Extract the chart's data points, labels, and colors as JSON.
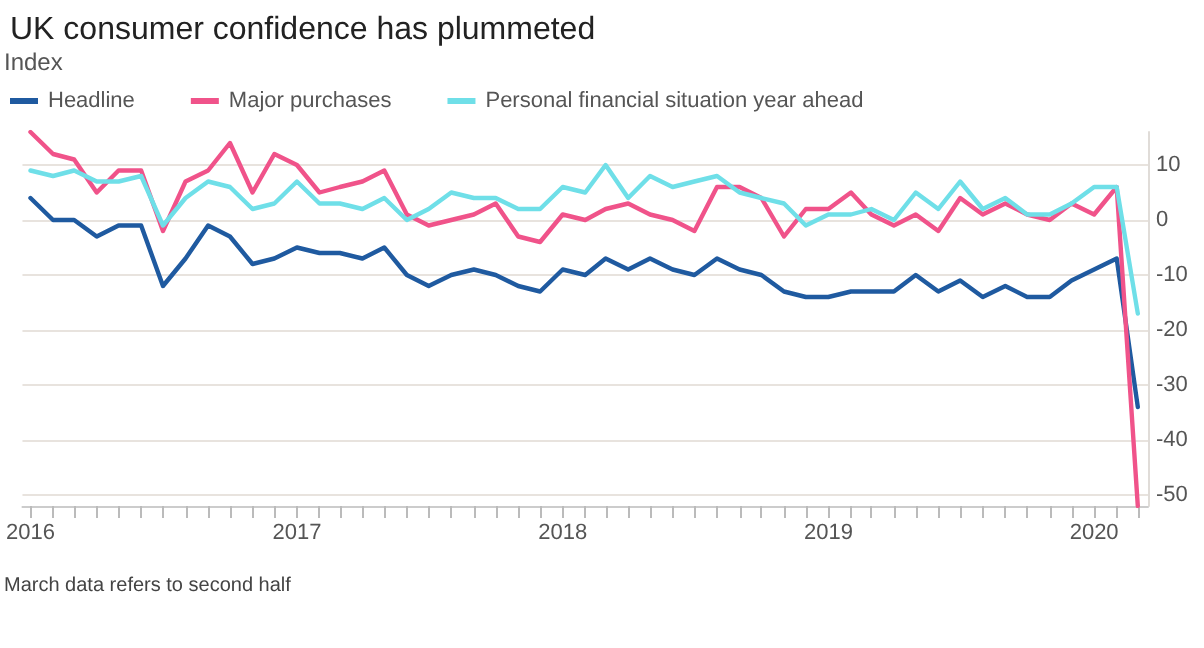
{
  "chart_data": {
    "type": "line",
    "title": "UK consumer confidence has plummeted",
    "ylabel": "Index",
    "x": [
      "2016-01",
      "2016-02",
      "2016-03",
      "2016-04",
      "2016-05",
      "2016-06",
      "2016-07",
      "2016-08",
      "2016-09",
      "2016-10",
      "2016-11",
      "2016-12",
      "2017-01",
      "2017-02",
      "2017-03",
      "2017-04",
      "2017-05",
      "2017-06",
      "2017-07",
      "2017-08",
      "2017-09",
      "2017-10",
      "2017-11",
      "2017-12",
      "2018-01",
      "2018-02",
      "2018-03",
      "2018-04",
      "2018-05",
      "2018-06",
      "2018-07",
      "2018-08",
      "2018-09",
      "2018-10",
      "2018-11",
      "2018-12",
      "2019-01",
      "2019-02",
      "2019-03",
      "2019-04",
      "2019-05",
      "2019-06",
      "2019-07",
      "2019-08",
      "2019-09",
      "2019-10",
      "2019-11",
      "2019-12",
      "2020-01",
      "2020-02",
      "2020-03"
    ],
    "series": [
      {
        "name": "Headline",
        "color": "#1f5aa0",
        "values": [
          4,
          0,
          0,
          -3,
          -1,
          -1,
          -12,
          -7,
          -1,
          -3,
          -8,
          -7,
          -5,
          -6,
          -6,
          -7,
          -5,
          -10,
          -12,
          -10,
          -9,
          -10,
          -12,
          -13,
          -9,
          -10,
          -7,
          -9,
          -7,
          -9,
          -10,
          -7,
          -9,
          -10,
          -13,
          -14,
          -14,
          -13,
          -13,
          -13,
          -10,
          -13,
          -11,
          -14,
          -12,
          -14,
          -14,
          -11,
          -9,
          -7,
          -34
        ]
      },
      {
        "name": "Major purchases",
        "color": "#f0538a",
        "values": [
          16,
          12,
          11,
          5,
          9,
          9,
          -2,
          7,
          9,
          14,
          5,
          12,
          10,
          5,
          6,
          7,
          9,
          1,
          -1,
          0,
          1,
          3,
          -3,
          -4,
          1,
          0,
          2,
          3,
          1,
          0,
          -2,
          6,
          6,
          4,
          -3,
          2,
          2,
          5,
          1,
          -1,
          1,
          -2,
          4,
          1,
          3,
          1,
          0,
          3,
          1,
          6,
          -52
        ]
      },
      {
        "name": "Personal financial situation year ahead",
        "color": "#6fdfe8",
        "values": [
          9,
          8,
          9,
          7,
          7,
          8,
          -1,
          4,
          7,
          6,
          2,
          3,
          7,
          3,
          3,
          2,
          4,
          0,
          2,
          5,
          4,
          4,
          2,
          2,
          6,
          5,
          10,
          4,
          8,
          6,
          7,
          8,
          5,
          4,
          3,
          -1,
          1,
          1,
          2,
          0,
          5,
          2,
          7,
          2,
          4,
          1,
          1,
          3,
          6,
          6,
          -17
        ]
      }
    ],
    "xlim": [
      "2015-12-21",
      "2020-03-15"
    ],
    "xticks": [
      {
        "value": "2016-01",
        "label": "2016"
      },
      {
        "value": "2016-02",
        "label": null
      },
      {
        "value": "2016-03",
        "label": null
      },
      {
        "value": "2016-04",
        "label": null
      },
      {
        "value": "2016-05",
        "label": null
      },
      {
        "value": "2016-06",
        "label": null
      },
      {
        "value": "2016-07",
        "label": null
      },
      {
        "value": "2016-08",
        "label": null
      },
      {
        "value": "2016-09",
        "label": null
      },
      {
        "value": "2016-10",
        "label": null
      },
      {
        "value": "2016-11",
        "label": null
      },
      {
        "value": "2016-12",
        "label": null
      },
      {
        "value": "2017-01",
        "label": "2017"
      },
      {
        "value": "2017-02",
        "label": null
      },
      {
        "value": "2017-03",
        "label": null
      },
      {
        "value": "2017-04",
        "label": null
      },
      {
        "value": "2017-05",
        "label": null
      },
      {
        "value": "2017-06",
        "label": null
      },
      {
        "value": "2017-07",
        "label": null
      },
      {
        "value": "2017-08",
        "label": null
      },
      {
        "value": "2017-09",
        "label": null
      },
      {
        "value": "2017-10",
        "label": null
      },
      {
        "value": "2017-11",
        "label": null
      },
      {
        "value": "2017-12",
        "label": null
      },
      {
        "value": "2018-01",
        "label": "2018"
      },
      {
        "value": "2018-02",
        "label": null
      },
      {
        "value": "2018-03",
        "label": null
      },
      {
        "value": "2018-04",
        "label": null
      },
      {
        "value": "2018-05",
        "label": null
      },
      {
        "value": "2018-06",
        "label": null
      },
      {
        "value": "2018-07",
        "label": null
      },
      {
        "value": "2018-08",
        "label": null
      },
      {
        "value": "2018-09",
        "label": null
      },
      {
        "value": "2018-10",
        "label": null
      },
      {
        "value": "2018-11",
        "label": null
      },
      {
        "value": "2018-12",
        "label": null
      },
      {
        "value": "2019-01",
        "label": "2019"
      },
      {
        "value": "2019-02",
        "label": null
      },
      {
        "value": "2019-03",
        "label": null
      },
      {
        "value": "2019-04",
        "label": null
      },
      {
        "value": "2019-05",
        "label": null
      },
      {
        "value": "2019-06",
        "label": null
      },
      {
        "value": "2019-07",
        "label": null
      },
      {
        "value": "2019-08",
        "label": null
      },
      {
        "value": "2019-09",
        "label": null
      },
      {
        "value": "2019-10",
        "label": null
      },
      {
        "value": "2019-11",
        "label": null
      },
      {
        "value": "2019-12",
        "label": null
      },
      {
        "value": "2020-01",
        "label": "2020"
      },
      {
        "value": "2020-02",
        "label": null
      },
      {
        "value": "2020-03",
        "label": null
      }
    ],
    "ylim": [
      -52,
      16
    ],
    "yticks": [
      10,
      0,
      -10,
      -20,
      -30,
      -40,
      -50
    ],
    "grid": "y",
    "legend": "top left",
    "marker": "none",
    "line_style": "solid",
    "annotations": [
      "March data refers to second half"
    ]
  }
}
